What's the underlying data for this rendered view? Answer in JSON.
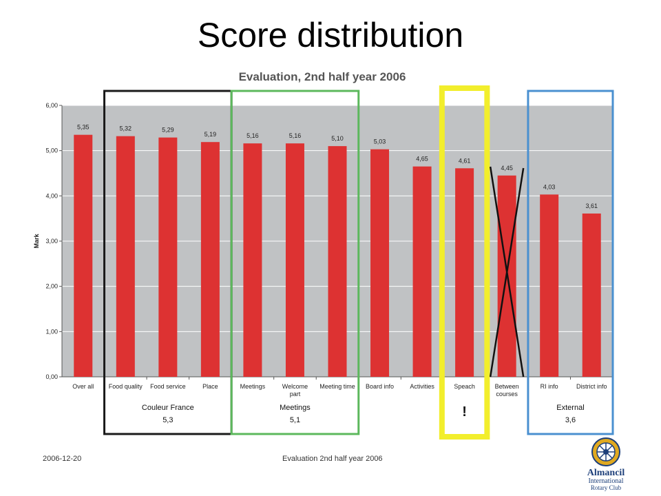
{
  "slide": {
    "title": "Score distribution",
    "footer_date": "2006-12-20",
    "footer_caption": "Evaluation 2nd half year 2006",
    "logo": {
      "line1": "Almancil",
      "line2": "International",
      "line3": "Rotary Club"
    }
  },
  "chart_data": {
    "type": "bar",
    "title": "Evaluation, 2nd half year 2006",
    "ylabel": "Mark",
    "ylim": [
      0,
      6
    ],
    "yticks": [
      "0,00",
      "1,00",
      "2,00",
      "3,00",
      "4,00",
      "5,00",
      "6,00"
    ],
    "categories": [
      [
        "Over all"
      ],
      [
        "Food quality"
      ],
      [
        "Food service"
      ],
      [
        "Place"
      ],
      [
        "Meetings"
      ],
      [
        "Welcome",
        "part"
      ],
      [
        "Meeting time"
      ],
      [
        "Board info"
      ],
      [
        "Activities"
      ],
      [
        "Speach"
      ],
      [
        "Between",
        "courses"
      ],
      [
        "RI info"
      ],
      [
        "District info"
      ]
    ],
    "values": [
      5.35,
      5.32,
      5.29,
      5.19,
      5.16,
      5.16,
      5.1,
      5.03,
      4.65,
      4.61,
      4.45,
      4.03,
      3.61
    ],
    "value_labels": [
      "5,35",
      "5,32",
      "5,29",
      "5,19",
      "5,16",
      "5,16",
      "5,10",
      "5,03",
      "4,65",
      "4,61",
      "4,45",
      "4,03",
      "3,61"
    ],
    "bar_color": "#dd3232",
    "plot_background": "#c0c2c4",
    "grid": true,
    "groups": [
      {
        "name": "Couleur France",
        "score": "5,3",
        "start": 1,
        "end": 3,
        "color": "#1a1a1a"
      },
      {
        "name": "Meetings",
        "score": "5,1",
        "start": 4,
        "end": 6,
        "color": "#5cb85c"
      },
      {
        "name": "",
        "score": "!",
        "start": 9,
        "end": 9,
        "color": "#f2ee2c"
      },
      {
        "name": "External",
        "score": "3,6",
        "start": 11,
        "end": 12,
        "color": "#4a90d0"
      }
    ],
    "crossed_out_index": 10
  }
}
